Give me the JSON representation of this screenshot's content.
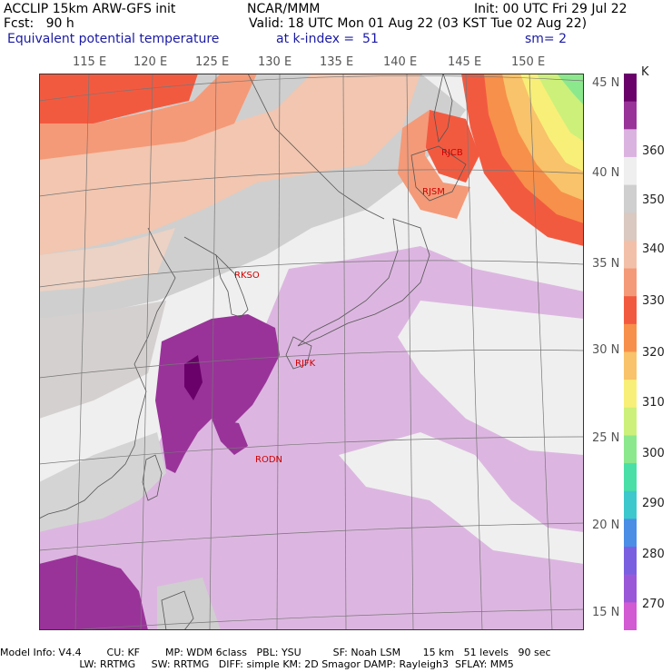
{
  "header": {
    "line1_left": "ACCLIP 15km ARW-GFS init",
    "line1_mid": "NCAR/MMM",
    "line1_right": "Init: 00 UTC Fri 29 Jul 22",
    "line2_left": "Fcst:   90 h",
    "line2_right": "Valid: 18 UTC Mon 01 Aug 22 (03 KST Tue 02 Aug 22)",
    "line3_left": "Equivalent potential temperature",
    "line3_mid": "at k-index =  51",
    "line3_right": "sm= 2"
  },
  "longitudes": [
    "115 E",
    "120 E",
    "125 E",
    "130 E",
    "135 E",
    "140 E",
    "145 E",
    "150 E"
  ],
  "latitudes": [
    "45 N",
    "40 N",
    "35 N",
    "30 N",
    "25 N",
    "20 N",
    "15 N"
  ],
  "stations": [
    {
      "id": "RJCB",
      "label": "RJCB"
    },
    {
      "id": "RJSM",
      "label": "RJSM"
    },
    {
      "id": "RKSO",
      "label": "RKSO"
    },
    {
      "id": "RJFK",
      "label": "RJFK"
    },
    {
      "id": "RODN",
      "label": "RODN"
    }
  ],
  "colorbar": {
    "unit": "K",
    "ticks": [
      "360",
      "350",
      "340",
      "330",
      "320",
      "310",
      "300",
      "290",
      "280",
      "270"
    ],
    "colors": [
      "#6a006a",
      "#993399",
      "#dbb3e0",
      "#efefef",
      "#cfcfcf",
      "#d9c9c0",
      "#f2c0a8",
      "#f49a78",
      "#f25a40",
      "#f7904a",
      "#f8c36a",
      "#f8ef78",
      "#cdf07a",
      "#8ce88c",
      "#49dfa6",
      "#3cc8cc",
      "#4a8ee6",
      "#7a60e0",
      "#9a58d8",
      "#d25ad2"
    ]
  },
  "footer": {
    "line1": "Model Info: V4.4        CU: KF        MP: WDM 6class   PBL: YSU          SF: Noah LSM       15 km   51 levels   90 sec",
    "line2": "                         LW: RRTMG     SW: RRTMG   DIFF: simple KM: 2D Smagor DAMP: Rayleigh3  SFLAY: MM5"
  }
}
